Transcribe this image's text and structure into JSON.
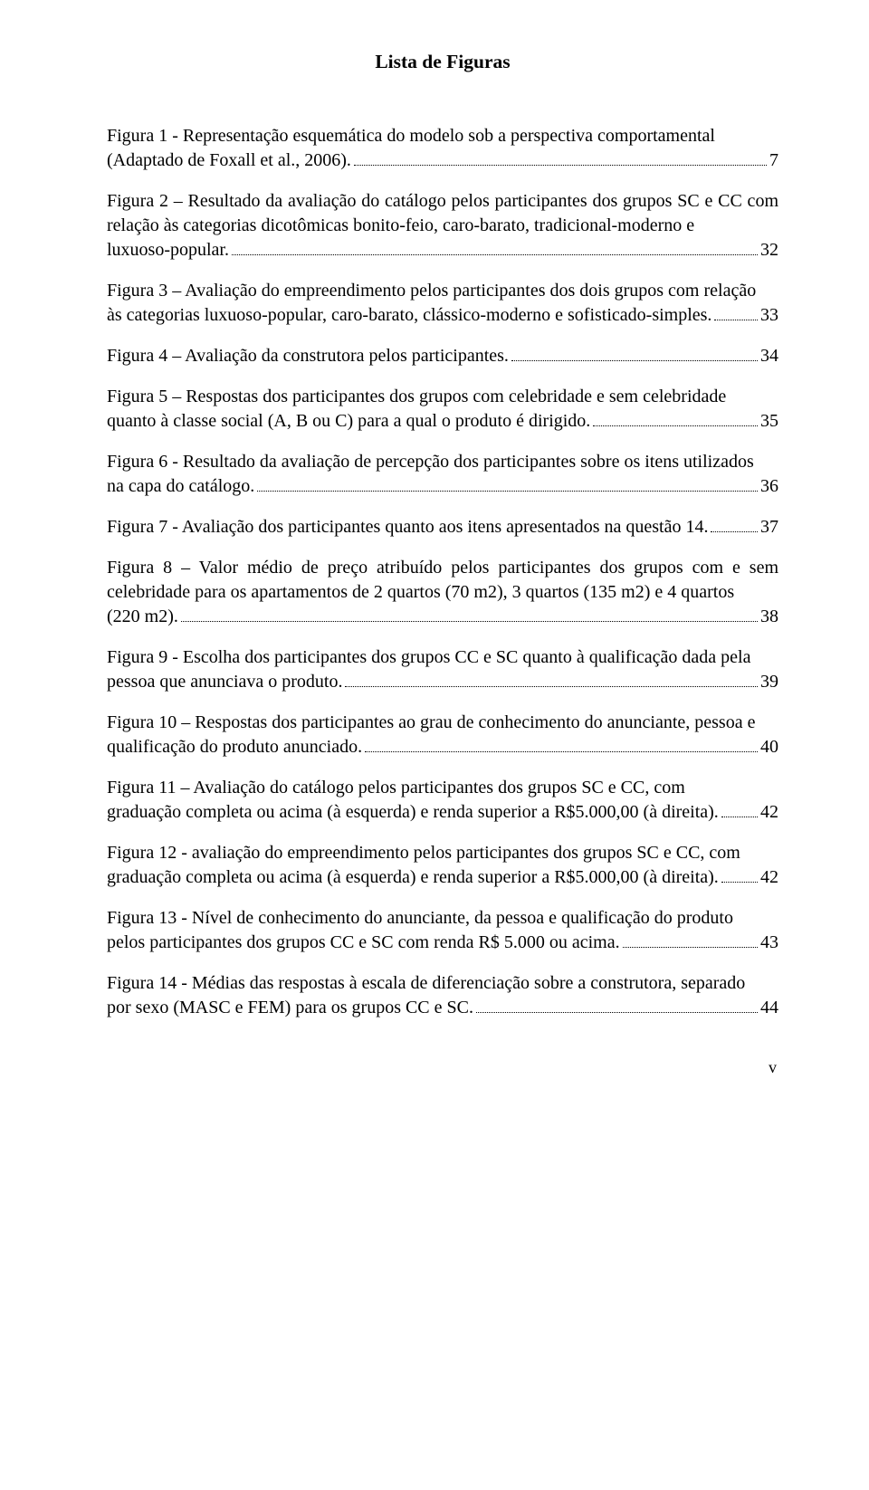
{
  "title": "Lista de Figuras",
  "footer": "v",
  "entries": [
    {
      "pre": "Figura 1 - Representação esquemática do modelo sob a perspectiva comportamental ",
      "last": "(Adaptado de Foxall et al., 2006).",
      "page": "7"
    },
    {
      "pre": "Figura 2 – Resultado da avaliação do catálogo pelos participantes dos grupos SC e CC com relação às categorias dicotômicas bonito-feio, caro-barato, tradicional-moderno e ",
      "last": "luxuoso-popular.",
      "page": "32"
    },
    {
      "pre": "Figura 3 – Avaliação do empreendimento pelos participantes dos dois grupos com relação ",
      "last": "às categorias luxuoso-popular, caro-barato, clássico-moderno e sofisticado-simples.",
      "page": "33"
    },
    {
      "pre": "",
      "last": "Figura 4 – Avaliação da construtora pelos participantes.",
      "page": "34"
    },
    {
      "pre": "Figura 5 – Respostas dos participantes dos grupos com celebridade e sem celebridade ",
      "last": "quanto à classe social (A, B ou C) para a qual o produto é dirigido.",
      "page": "35"
    },
    {
      "pre": "Figura 6 - Resultado da avaliação de percepção dos participantes sobre os itens utilizados ",
      "last": "na capa do catálogo.",
      "page": "36"
    },
    {
      "pre": "",
      "last": "Figura 7 - Avaliação dos participantes quanto aos itens apresentados na questão 14.",
      "page": "37"
    },
    {
      "pre": "Figura 8 – Valor médio de preço atribuído pelos participantes dos grupos com e sem celebridade para os apartamentos de 2 quartos (70 m2), 3 quartos (135 m2) e 4 quartos ",
      "last": "(220 m2).",
      "page": "38"
    },
    {
      "pre": "Figura 9 - Escolha dos participantes dos grupos CC e SC quanto à qualificação dada pela ",
      "last": "pessoa que anunciava o produto.",
      "page": "39"
    },
    {
      "pre": "Figura 10 – Respostas dos participantes ao grau de conhecimento do anunciante, pessoa e ",
      "last": "qualificação do produto anunciado.",
      "page": "40"
    },
    {
      "pre": "Figura 11 – Avaliação do catálogo pelos participantes dos grupos SC e CC, com ",
      "last": "graduação completa ou acima (à esquerda) e renda superior a R$5.000,00 (à direita).",
      "page": "42"
    },
    {
      "pre": "Figura 12 - avaliação do empreendimento pelos participantes dos grupos SC e CC, com ",
      "last": "graduação completa ou acima (à esquerda) e renda superior a R$5.000,00 (à direita).",
      "page": "42"
    },
    {
      "pre": "Figura 13 - Nível de conhecimento do anunciante, da pessoa e qualificação do produto ",
      "last": "pelos participantes dos grupos CC e SC com renda R$ 5.000 ou acima.",
      "page": "43"
    },
    {
      "pre": "Figura 14 - Médias das respostas à escala de diferenciação sobre a construtora, separado ",
      "last": "por sexo (MASC e FEM) para os grupos CC e SC.",
      "page": "44"
    }
  ]
}
